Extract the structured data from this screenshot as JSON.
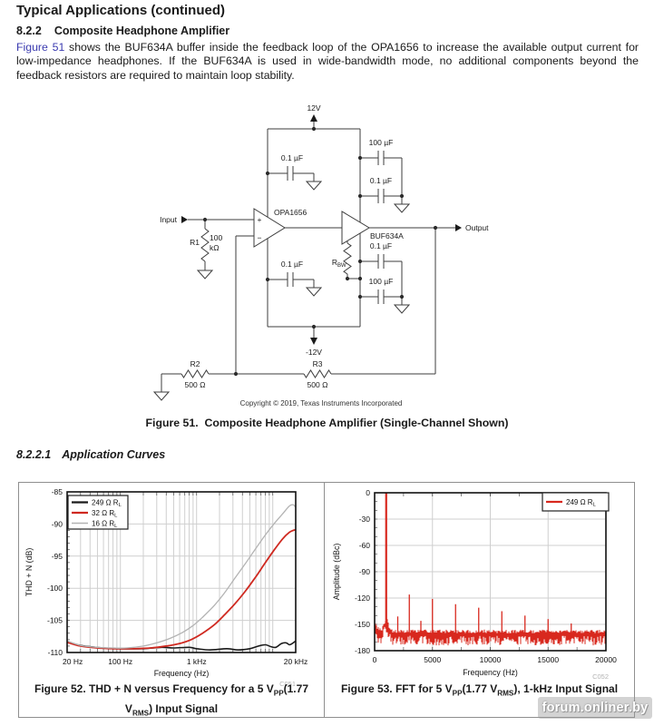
{
  "page": {
    "section_title": "Typical Applications (continued)",
    "subsection_number": "8.2.2",
    "subsection_title": "Composite Headphone Amplifier",
    "paragraph": {
      "link_text": "Figure 51",
      "body_after_link": " shows the BUF634A buffer inside the feedback loop of the OPA1656 to increase the available output current for low-impedance headphones. If the BUF634A is used in wide-bandwidth mode, no additional components beyond the feedback resistors are required to maintain loop stability."
    },
    "figure51_caption": "Figure 51.  Composite Headphone Amplifier (Single-Channel Shown)",
    "subsubsection_number": "8.2.2.1",
    "subsubsection_title": "Application Curves",
    "watermark": "forum.onliner.by"
  },
  "schematic": {
    "labels": {
      "supply_pos": "12V",
      "supply_neg": "-12V",
      "cap_tl": "0.1 µF",
      "cap_bl": "0.1 µF",
      "cap_tr_100": "100 µF",
      "cap_tr_01": "0.1 µF",
      "cap_br_01": "0.1 µF",
      "cap_br_100": "100 µF",
      "opamp": "OPA1656",
      "buffer": "BUF634A",
      "input": "Input",
      "output": "Output",
      "plus": "+",
      "minus": "−",
      "r1_name": "R1",
      "r1_val1": "100",
      "r1_val2": "kΩ",
      "rbw_main": "R",
      "rbw_sub": "BW",
      "r2_name": "R2",
      "r2_val": "500 Ω",
      "r3_name": "R3",
      "r3_val": "500 Ω",
      "copyright": "Copyright © 2019, Texas Instruments Incorporated"
    }
  },
  "chart_data": [
    {
      "id": "figure52",
      "type": "line",
      "xlabel": "Frequency (Hz)",
      "ylabel": "THD + N (dB)",
      "x_scale": "log",
      "xlim": [
        20,
        20000
      ],
      "ylim": [
        -110,
        -85
      ],
      "x_ticks": [
        {
          "v": 20,
          "label": "20 Hz"
        },
        {
          "v": 100,
          "label": "100 Hz"
        },
        {
          "v": 1000,
          "label": "1 kHz"
        },
        {
          "v": 20000,
          "label": "20 kHz"
        }
      ],
      "y_ticks": [
        -85,
        -90,
        -95,
        -100,
        -105,
        -110
      ],
      "grid": true,
      "legend_position": "top-left",
      "code_label": "C051",
      "caption_parts": [
        {
          "t": "Figure 52. THD + N versus Frequency for a 5 V"
        },
        {
          "s": "PP"
        },
        {
          "t": "(1.77 V"
        },
        {
          "s": "RMS"
        },
        {
          "t": ") Input Signal"
        }
      ],
      "legend": [
        {
          "pre": "249 Ω R",
          "sub": "L",
          "color": "#1a1a1a"
        },
        {
          "pre": "32 Ω R",
          "sub": "L",
          "color": "#cf2920"
        },
        {
          "pre": "16 Ω R",
          "sub": "L",
          "color": "#b3b3b3"
        }
      ],
      "series": [
        {
          "name": "249 Ω RL",
          "color": "#1a1a1a",
          "width": 1.6,
          "points": [
            [
              20,
              -108.3
            ],
            [
              30,
              -108.9
            ],
            [
              60,
              -109.3
            ],
            [
              100,
              -109.4
            ],
            [
              200,
              -109.4
            ],
            [
              350,
              -109.2
            ],
            [
              500,
              -109.3
            ],
            [
              800,
              -109.2
            ],
            [
              1000,
              -109.4
            ],
            [
              1500,
              -109.6
            ],
            [
              2500,
              -109.4
            ],
            [
              3500,
              -109.6
            ],
            [
              5000,
              -109.4
            ],
            [
              6500,
              -109.0
            ],
            [
              8000,
              -108.8
            ],
            [
              9500,
              -109.1
            ],
            [
              11000,
              -109.2
            ],
            [
              13000,
              -108.6
            ],
            [
              15000,
              -108.5
            ],
            [
              16500,
              -108.8
            ],
            [
              18000,
              -108.6
            ],
            [
              20000,
              -108.2
            ]
          ]
        },
        {
          "name": "32 Ω RL",
          "color": "#cf2920",
          "width": 1.8,
          "points": [
            [
              20,
              -108.4
            ],
            [
              30,
              -109.0
            ],
            [
              50,
              -109.3
            ],
            [
              80,
              -109.4
            ],
            [
              150,
              -109.4
            ],
            [
              250,
              -109.3
            ],
            [
              400,
              -109.0
            ],
            [
              600,
              -108.6
            ],
            [
              850,
              -108.0
            ],
            [
              1200,
              -107.0
            ],
            [
              1700,
              -105.7
            ],
            [
              2300,
              -104.2
            ],
            [
              3200,
              -102.4
            ],
            [
              4400,
              -100.4
            ],
            [
              6000,
              -98.2
            ],
            [
              8000,
              -96.0
            ],
            [
              10500,
              -94.0
            ],
            [
              13500,
              -92.3
            ],
            [
              16500,
              -91.3
            ],
            [
              18500,
              -91.0
            ],
            [
              20000,
              -90.9
            ]
          ]
        },
        {
          "name": "16 Ω RL",
          "color": "#b3b3b3",
          "width": 1.3,
          "points": [
            [
              20,
              -108.2
            ],
            [
              30,
              -108.9
            ],
            [
              50,
              -109.2
            ],
            [
              80,
              -109.3
            ],
            [
              120,
              -109.3
            ],
            [
              200,
              -109.0
            ],
            [
              300,
              -108.5
            ],
            [
              450,
              -107.8
            ],
            [
              650,
              -106.9
            ],
            [
              900,
              -105.8
            ],
            [
              1200,
              -104.5
            ],
            [
              1700,
              -102.7
            ],
            [
              2300,
              -100.8
            ],
            [
              3200,
              -98.4
            ],
            [
              4400,
              -96.1
            ],
            [
              6000,
              -93.8
            ],
            [
              8000,
              -91.7
            ],
            [
              10500,
              -89.9
            ],
            [
              13500,
              -88.4
            ],
            [
              16500,
              -87.2
            ],
            [
              18500,
              -87.0
            ],
            [
              20000,
              -87.4
            ]
          ]
        }
      ]
    },
    {
      "id": "figure53",
      "type": "line",
      "xlabel": "Frequency (Hz)",
      "ylabel": "Amplitude (dBc)",
      "x_scale": "linear",
      "xlim": [
        0,
        20000
      ],
      "ylim": [
        -180,
        0
      ],
      "x_ticks": [
        {
          "v": 0,
          "label": "0"
        },
        {
          "v": 5000,
          "label": "5000"
        },
        {
          "v": 10000,
          "label": "10000"
        },
        {
          "v": 15000,
          "label": "15000"
        },
        {
          "v": 20000,
          "label": "20000"
        }
      ],
      "y_ticks": [
        0,
        -30,
        -60,
        -90,
        -120,
        -150,
        -180
      ],
      "x_gridlines": [
        5000,
        10000,
        15000
      ],
      "grid": true,
      "legend_position": "top-right",
      "code_label": "C052",
      "caption_parts": [
        {
          "t": "Figure 53. FFT for 5 V"
        },
        {
          "s": "PP"
        },
        {
          "t": "(1.77 V"
        },
        {
          "s": "RMS"
        },
        {
          "t": "), 1-kHz Input Signal"
        }
      ],
      "legend": [
        {
          "pre": "249 Ω R",
          "sub": "L",
          "color": "#d8281e"
        }
      ],
      "trace_color": "#d8281e",
      "fundamental": {
        "freq": 1000,
        "dBc": 0
      },
      "harmonics": [
        [
          2000,
          -141
        ],
        [
          3000,
          -116
        ],
        [
          4000,
          -146
        ],
        [
          5000,
          -121
        ],
        [
          7000,
          -127
        ],
        [
          9000,
          -131
        ],
        [
          11000,
          -135
        ],
        [
          13000,
          -140
        ],
        [
          15000,
          -144
        ],
        [
          17000,
          -149
        ]
      ],
      "noise_floor": {
        "mean": -160,
        "spread_up": 4,
        "spread_down": 11,
        "skirt_db": 14,
        "dc_rise_db": 10.5
      }
    }
  ]
}
